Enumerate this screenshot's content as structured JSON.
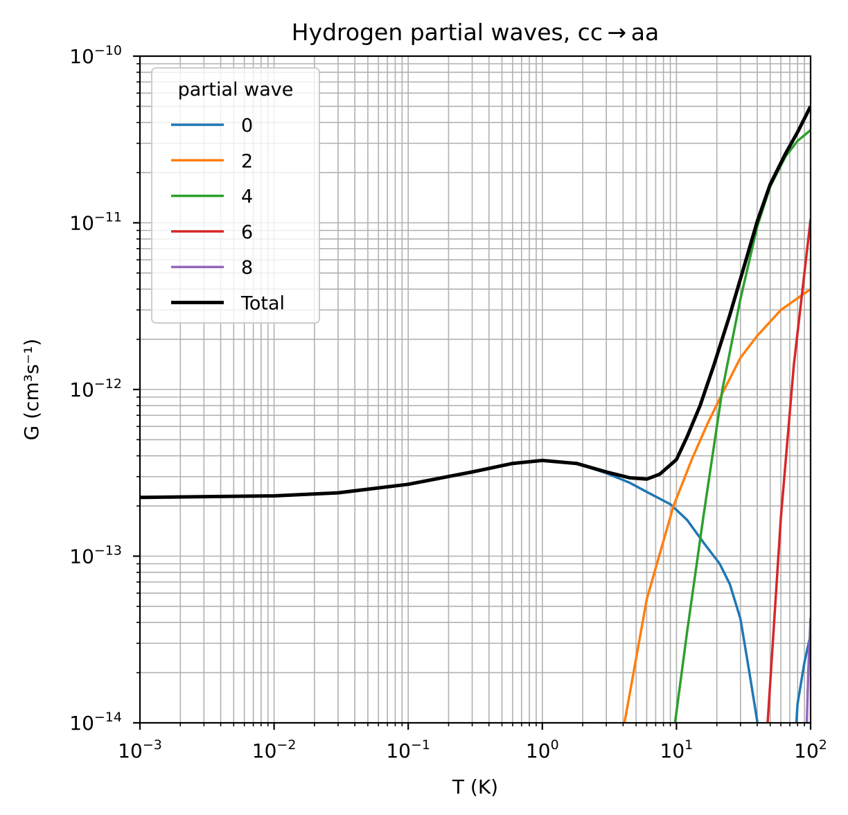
{
  "chart_data": {
    "type": "line",
    "title": "Hydrogen partial waves, cc → aa",
    "xlabel": "T (K)",
    "ylabel": "G (cm³s⁻¹)",
    "xscale": "log",
    "yscale": "log",
    "xlim": [
      0.001,
      100
    ],
    "ylim": [
      1e-14,
      1e-10
    ],
    "x_ticks": [
      {
        "value": 0.001,
        "base": "10",
        "exp": "−3"
      },
      {
        "value": 0.01,
        "base": "10",
        "exp": "−2"
      },
      {
        "value": 0.1,
        "base": "10",
        "exp": "−1"
      },
      {
        "value": 1,
        "base": "10",
        "exp": "0"
      },
      {
        "value": 10,
        "base": "10",
        "exp": "1"
      },
      {
        "value": 100,
        "base": "10",
        "exp": "2"
      }
    ],
    "y_ticks": [
      {
        "value": 1e-14,
        "base": "10",
        "exp": "−14"
      },
      {
        "value": 1e-13,
        "base": "10",
        "exp": "−13"
      },
      {
        "value": 1e-12,
        "base": "10",
        "exp": "−12"
      },
      {
        "value": 1e-11,
        "base": "10",
        "exp": "−11"
      },
      {
        "value": 1e-10,
        "base": "10",
        "exp": "−10"
      }
    ],
    "grid": "major and minor",
    "legend": {
      "title": "partial wave",
      "placement": "upper-left"
    },
    "series": [
      {
        "name": "0",
        "color": "#1f77b4",
        "linewidth": 3.5,
        "points": [
          [
            0.001,
            2.25e-13
          ],
          [
            0.01,
            2.3e-13
          ],
          [
            0.03,
            2.4e-13
          ],
          [
            0.1,
            2.7e-13
          ],
          [
            0.3,
            3.2e-13
          ],
          [
            0.6,
            3.6e-13
          ],
          [
            1.0,
            3.75e-13
          ],
          [
            1.8,
            3.6e-13
          ],
          [
            3.0,
            3.15e-13
          ],
          [
            4.5,
            2.75e-13
          ],
          [
            6.5,
            2.35e-13
          ],
          [
            9.0,
            2.05e-13
          ],
          [
            12.0,
            1.65e-13
          ],
          [
            16.0,
            1.2e-13
          ],
          [
            21.0,
            9e-14
          ],
          [
            25.0,
            6.8e-14
          ],
          [
            30.0,
            4.2e-14
          ],
          [
            35.0,
            2e-14
          ],
          [
            42.0,
            8e-15
          ]
        ]
      },
      {
        "name": "0",
        "color": "#1f77b4",
        "linewidth": 3.5,
        "hide_legend": true,
        "points": [
          [
            77.0,
            8e-15
          ],
          [
            80.0,
            1.3e-14
          ],
          [
            90.0,
            2.3e-14
          ],
          [
            100.0,
            3.4e-14
          ]
        ]
      },
      {
        "name": "2",
        "color": "#ff7f0e",
        "linewidth": 3.5,
        "points": [
          [
            3.9,
            8e-15
          ],
          [
            6.0,
            5.5e-14
          ],
          [
            9.5,
            2e-13
          ],
          [
            13.0,
            3.8e-13
          ],
          [
            17.0,
            6.2e-13
          ],
          [
            22.0,
            9.5e-13
          ],
          [
            30.0,
            1.55e-12
          ],
          [
            40.0,
            2.1e-12
          ],
          [
            60.0,
            3e-12
          ],
          [
            100.0,
            4e-12
          ]
        ]
      },
      {
        "name": "4",
        "color": "#2ca02c",
        "linewidth": 3.5,
        "points": [
          [
            9.4,
            8e-15
          ],
          [
            12.0,
            3.5e-14
          ],
          [
            16.0,
            1.8e-13
          ],
          [
            22.0,
            1e-12
          ],
          [
            30.0,
            3.5e-12
          ],
          [
            40.0,
            9.5e-12
          ],
          [
            50.0,
            1.65e-11
          ],
          [
            65.0,
            2.5e-11
          ],
          [
            80.0,
            3.1e-11
          ],
          [
            100.0,
            3.6e-11
          ]
        ]
      },
      {
        "name": "6",
        "color": "#d62728",
        "linewidth": 3.5,
        "points": [
          [
            47.0,
            8e-15
          ],
          [
            60.0,
            1.7e-13
          ],
          [
            75.0,
            1.4e-12
          ],
          [
            90.0,
            5e-12
          ],
          [
            100.0,
            1.05e-11
          ]
        ]
      },
      {
        "name": "8",
        "color": "#9467bd",
        "linewidth": 3.5,
        "points": [
          [
            93.0,
            8e-15
          ],
          [
            96.0,
            2e-14
          ],
          [
            100.0,
            4.3e-14
          ]
        ]
      },
      {
        "name": "Total",
        "color": "#000000",
        "linewidth": 5,
        "points": [
          [
            0.001,
            2.25e-13
          ],
          [
            0.01,
            2.3e-13
          ],
          [
            0.03,
            2.4e-13
          ],
          [
            0.1,
            2.7e-13
          ],
          [
            0.3,
            3.2e-13
          ],
          [
            0.6,
            3.6e-13
          ],
          [
            1.0,
            3.75e-13
          ],
          [
            1.8,
            3.6e-13
          ],
          [
            3.0,
            3.2e-13
          ],
          [
            4.5,
            2.95e-13
          ],
          [
            6.0,
            2.9e-13
          ],
          [
            7.5,
            3.1e-13
          ],
          [
            10.0,
            3.8e-13
          ],
          [
            12.0,
            5.2e-13
          ],
          [
            15.0,
            8e-13
          ],
          [
            19.0,
            1.4e-12
          ],
          [
            25.0,
            2.8e-12
          ],
          [
            32.0,
            5.5e-12
          ],
          [
            40.0,
            1.02e-11
          ],
          [
            50.0,
            1.7e-11
          ],
          [
            65.0,
            2.6e-11
          ],
          [
            80.0,
            3.5e-11
          ],
          [
            100.0,
            5e-11
          ]
        ]
      }
    ]
  }
}
